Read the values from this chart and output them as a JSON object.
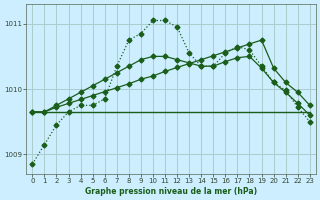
{
  "title": "Graphe pression niveau de la mer (hPa)",
  "xlabel": "",
  "ylabel": "",
  "background_color": "#cceeff",
  "grid_color": "#aacccc",
  "line_color_main": "#1a5e1a",
  "line_color_dotted": "#2a7a2a",
  "ylim": [
    1008.7,
    1011.3
  ],
  "xlim": [
    -0.5,
    23.5
  ],
  "yticks": [
    1009,
    1010,
    1011
  ],
  "xticks": [
    0,
    1,
    2,
    3,
    4,
    5,
    6,
    7,
    8,
    9,
    10,
    11,
    12,
    13,
    14,
    15,
    16,
    17,
    18,
    19,
    20,
    21,
    22,
    23
  ],
  "series1": {
    "x": [
      0,
      1,
      2,
      3,
      4,
      5,
      6,
      7,
      8,
      9,
      10,
      11,
      12,
      13,
      14,
      15,
      16,
      17,
      18,
      19,
      20,
      21,
      22,
      23
    ],
    "y": [
      1009.65,
      1009.65,
      1009.65,
      1009.65,
      1009.65,
      1009.65,
      1009.65,
      1009.65,
      1009.65,
      1009.65,
      1009.65,
      1009.65,
      1009.65,
      1009.65,
      1009.65,
      1009.65,
      1009.65,
      1009.65,
      1009.65,
      1009.65,
      1009.65,
      1009.65,
      1009.65,
      1009.65
    ],
    "style": "flat"
  },
  "series2": {
    "x": [
      0,
      1,
      2,
      3,
      4,
      5,
      6,
      7,
      8,
      9,
      10,
      11,
      12,
      13,
      14,
      15,
      16,
      17,
      18,
      19,
      20,
      21,
      22,
      23
    ],
    "y": [
      1009.65,
      1009.65,
      1009.72,
      1009.78,
      1009.84,
      1009.9,
      1009.96,
      1010.02,
      1010.08,
      1010.15,
      1010.2,
      1010.27,
      1010.33,
      1010.39,
      1010.45,
      1010.51,
      1010.57,
      1010.63,
      1010.69,
      1010.75,
      1010.32,
      1010.1,
      1009.95,
      1009.75
    ],
    "style": "gradual1"
  },
  "series3": {
    "x": [
      0,
      1,
      2,
      3,
      4,
      5,
      6,
      7,
      8,
      9,
      10,
      11,
      12,
      13,
      14,
      15,
      16,
      17,
      18,
      19,
      20,
      21,
      22,
      23
    ],
    "y": [
      1009.65,
      1009.65,
      1009.75,
      1009.85,
      1009.95,
      1010.05,
      1010.15,
      1010.25,
      1010.35,
      1010.45,
      1010.5,
      1010.5,
      1010.45,
      1010.4,
      1010.35,
      1010.35,
      1010.42,
      1010.48,
      1010.5,
      1010.32,
      1010.1,
      1009.95,
      1009.78,
      1009.6
    ],
    "style": "gradual2"
  },
  "series_dotted": {
    "x": [
      0,
      1,
      2,
      3,
      4,
      5,
      6,
      7,
      8,
      9,
      10,
      11,
      12,
      13,
      14,
      15,
      16,
      17,
      18,
      19,
      20,
      21,
      22,
      23
    ],
    "y": [
      1008.85,
      1009.15,
      1009.45,
      1009.65,
      1009.75,
      1009.75,
      1009.85,
      1010.35,
      1010.75,
      1010.85,
      1011.05,
      1011.05,
      1010.95,
      1010.55,
      1010.35,
      1010.35,
      1010.55,
      1010.65,
      1010.6,
      1010.35,
      1010.1,
      1009.98,
      1009.72,
      1009.5
    ]
  }
}
